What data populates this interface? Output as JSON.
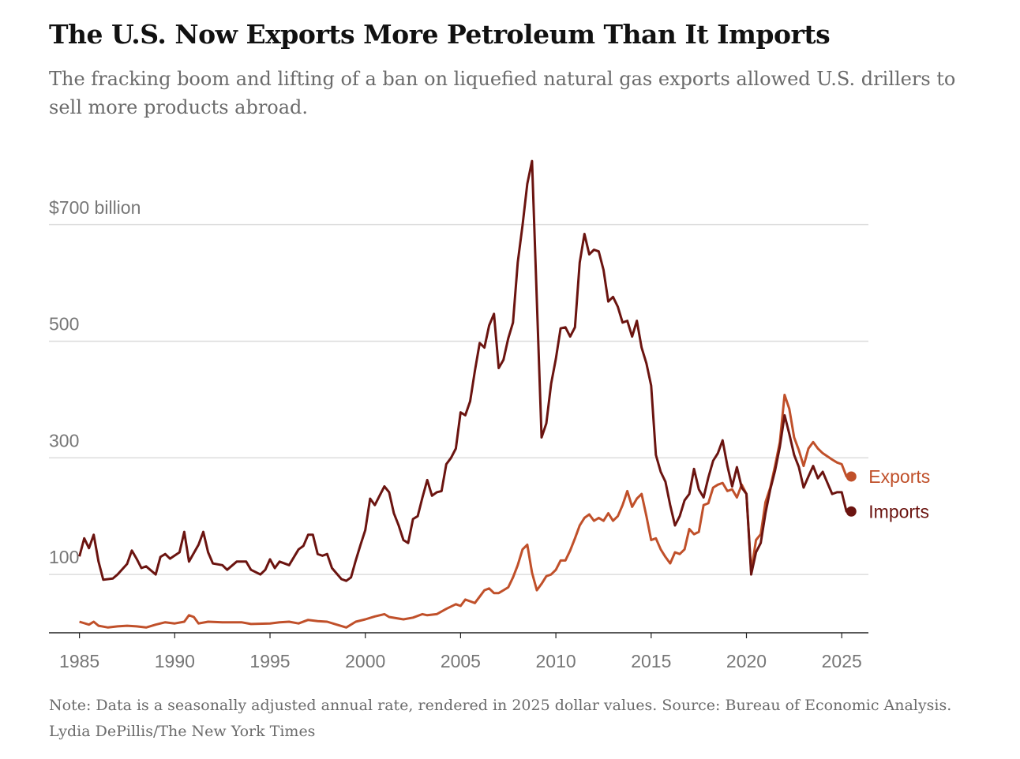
{
  "chart_data": {
    "type": "line",
    "title": "The U.S. Now Exports More Petroleum Than It Imports",
    "subtitle": "The fracking boom and lifting of a ban on liquefied natural gas exports allowed U.S. drillers to sell more products abroad.",
    "note": "Note: Data is a seasonally adjusted annual rate, rendered in 2025 dollar values.  Source: Bureau of Economic Analysis.  Lydia DePillis/The New York Times",
    "xlim": [
      1983.4,
      2026.4
    ],
    "xticks": [
      1985,
      1990,
      1995,
      2000,
      2005,
      2010,
      2015,
      2020,
      2025
    ],
    "ylim": [
      0,
      820
    ],
    "yticks": [
      100,
      300,
      500,
      {
        "value": 700,
        "label": "$700 billion"
      }
    ],
    "grid": true,
    "series": [
      {
        "name": "Exports",
        "color": "#c0502a",
        "x": [
          1985,
          1985.5,
          1985.75,
          1986,
          1986.5,
          1987,
          1987.5,
          1988,
          1988.5,
          1989,
          1989.5,
          1990,
          1990.5,
          1990.75,
          1991,
          1991.25,
          1991.75,
          1992.5,
          1993.5,
          1994,
          1995,
          1995.5,
          1996,
          1996.5,
          1997,
          1997.5,
          1998,
          1998.5,
          1999,
          1999.5,
          2000,
          2000.5,
          2001,
          2001.25,
          2002,
          2002.5,
          2003,
          2003.25,
          2003.75,
          2004.25,
          2004.75,
          2005,
          2005.25,
          2005.5,
          2005.75,
          2006,
          2006.25,
          2006.5,
          2006.75,
          2007,
          2007.25,
          2007.5,
          2007.75,
          2008,
          2008.25,
          2008.5,
          2008.75,
          2009,
          2009.25,
          2009.5,
          2009.75,
          2010,
          2010.25,
          2010.5,
          2010.75,
          2011,
          2011.25,
          2011.5,
          2011.75,
          2012,
          2012.25,
          2012.5,
          2012.75,
          2013,
          2013.25,
          2013.5,
          2013.75,
          2014,
          2014.25,
          2014.5,
          2014.75,
          2015,
          2015.25,
          2015.5,
          2015.75,
          2016,
          2016.25,
          2016.5,
          2016.75,
          2017,
          2017.25,
          2017.5,
          2017.75,
          2018,
          2018.25,
          2018.5,
          2018.75,
          2019,
          2019.25,
          2019.5,
          2019.75,
          2020,
          2020.25,
          2020.5,
          2020.75,
          2021,
          2021.25,
          2021.5,
          2021.75,
          2022,
          2022.25,
          2022.5,
          2022.75,
          2023,
          2023.25,
          2023.5,
          2023.75,
          2024,
          2024.5,
          2024.75,
          2025,
          2025.25,
          2025.5
        ],
        "values": [
          19,
          14,
          19,
          12,
          9,
          11,
          12,
          11,
          9,
          14,
          18,
          16,
          19,
          30,
          27,
          16,
          19,
          18,
          18,
          15,
          16,
          18,
          19,
          16,
          22,
          20,
          19,
          14,
          9,
          19,
          23,
          28,
          32,
          27,
          23,
          26,
          32,
          30,
          32,
          41,
          49,
          46,
          57,
          54,
          51,
          62,
          73,
          76,
          68,
          68,
          73,
          78,
          95,
          116,
          143,
          151,
          103,
          73,
          84,
          97,
          100,
          108,
          124,
          124,
          141,
          162,
          184,
          197,
          203,
          192,
          197,
          192,
          205,
          192,
          200,
          219,
          243,
          216,
          230,
          238,
          200,
          159,
          162,
          143,
          130,
          119,
          138,
          135,
          143,
          178,
          169,
          173,
          219,
          222,
          249,
          254,
          257,
          243,
          246,
          232,
          254,
          238,
          105,
          159,
          169,
          224,
          249,
          286,
          327,
          408,
          384,
          335,
          313,
          286,
          316,
          327,
          316,
          308,
          297,
          292,
          289,
          268,
          268
        ]
      },
      {
        "name": "Imports",
        "color": "#6b1410",
        "x": [
          1985,
          1985.25,
          1985.5,
          1985.75,
          1986,
          1986.25,
          1986.75,
          1987,
          1987.5,
          1987.75,
          1988,
          1988.25,
          1988.5,
          1989,
          1989.25,
          1989.5,
          1989.75,
          1990.25,
          1990.5,
          1990.75,
          1991.25,
          1991.5,
          1991.75,
          1992,
          1992.5,
          1992.75,
          1993.25,
          1993.75,
          1994,
          1994.5,
          1994.75,
          1995,
          1995.25,
          1995.5,
          1996,
          1996.5,
          1996.75,
          1997,
          1997.25,
          1997.5,
          1997.75,
          1998,
          1998.25,
          1998.75,
          1999,
          1999.25,
          1999.5,
          1999.75,
          2000,
          2000.25,
          2000.5,
          2000.75,
          2001,
          2001.25,
          2001.5,
          2001.75,
          2002,
          2002.25,
          2002.5,
          2002.75,
          2003,
          2003.25,
          2003.5,
          2003.75,
          2004,
          2004.25,
          2004.5,
          2004.75,
          2005,
          2005.25,
          2005.5,
          2005.75,
          2006,
          2006.25,
          2006.5,
          2006.75,
          2007,
          2007.25,
          2007.5,
          2007.75,
          2008,
          2008.25,
          2008.5,
          2008.75,
          2009,
          2009.25,
          2009.5,
          2009.75,
          2010,
          2010.25,
          2010.5,
          2010.75,
          2011,
          2011.25,
          2011.5,
          2011.75,
          2012,
          2012.25,
          2012.5,
          2012.75,
          2013,
          2013.25,
          2013.5,
          2013.75,
          2014,
          2014.25,
          2014.5,
          2014.75,
          2015,
          2015.25,
          2015.5,
          2015.75,
          2016,
          2016.25,
          2016.5,
          2016.75,
          2017,
          2017.25,
          2017.5,
          2017.75,
          2018,
          2018.25,
          2018.5,
          2018.75,
          2019,
          2019.25,
          2019.5,
          2019.75,
          2020,
          2020.25,
          2020.5,
          2020.75,
          2021,
          2021.25,
          2021.5,
          2021.75,
          2022,
          2022.25,
          2022.5,
          2022.75,
          2023,
          2023.25,
          2023.5,
          2023.75,
          2024,
          2024.25,
          2024.5,
          2024.75,
          2025,
          2025.25,
          2025.5
        ],
        "values": [
          131,
          162,
          145,
          168,
          122,
          91,
          93,
          100,
          118,
          141,
          127,
          111,
          114,
          100,
          130,
          135,
          127,
          138,
          173,
          122,
          151,
          173,
          138,
          119,
          116,
          108,
          122,
          122,
          108,
          100,
          108,
          126,
          111,
          122,
          116,
          143,
          149,
          168,
          168,
          135,
          132,
          135,
          111,
          92,
          89,
          95,
          124,
          151,
          176,
          230,
          219,
          235,
          251,
          241,
          205,
          184,
          159,
          154,
          195,
          200,
          232,
          262,
          235,
          241,
          243,
          289,
          300,
          316,
          378,
          373,
          397,
          449,
          497,
          489,
          527,
          547,
          454,
          468,
          505,
          532,
          635,
          699,
          770,
          809,
          570,
          335,
          359,
          427,
          470,
          522,
          524,
          508,
          524,
          635,
          684,
          649,
          657,
          654,
          622,
          568,
          576,
          559,
          532,
          535,
          508,
          535,
          489,
          462,
          424,
          305,
          276,
          259,
          219,
          184,
          200,
          227,
          238,
          281,
          246,
          232,
          266,
          295,
          308,
          330,
          286,
          251,
          284,
          249,
          238,
          100,
          138,
          154,
          205,
          246,
          278,
          319,
          373,
          341,
          305,
          284,
          249,
          268,
          286,
          265,
          276,
          257,
          238,
          241,
          241,
          208,
          208
        ]
      }
    ]
  }
}
